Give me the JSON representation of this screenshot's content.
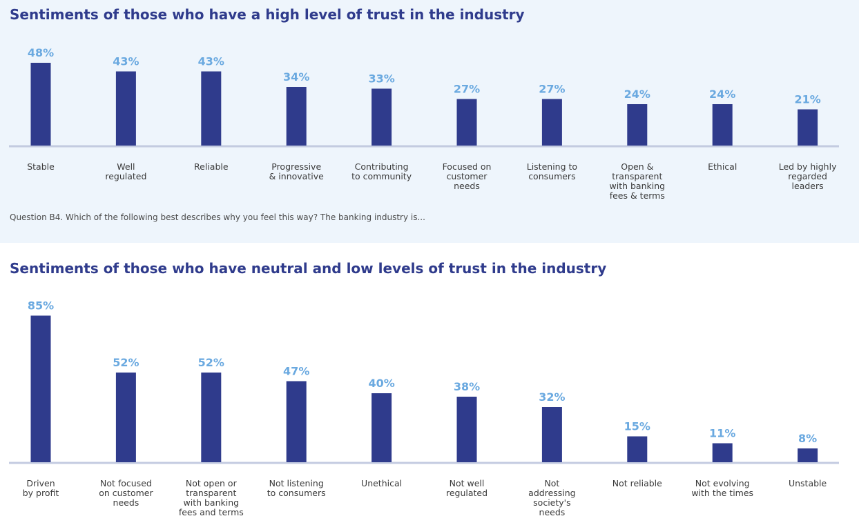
{
  "chart_data": [
    {
      "type": "bar",
      "title": "Sentiments of those who have a high level of trust in the industry",
      "categories": [
        [
          "Stable"
        ],
        [
          "Well",
          "regulated"
        ],
        [
          "Reliable"
        ],
        [
          "Progressive",
          "& innovative"
        ],
        [
          "Contributing",
          "to community"
        ],
        [
          "Focused on",
          "customer",
          "needs"
        ],
        [
          "Listening to",
          "consumers"
        ],
        [
          "Open &",
          "transparent",
          "with banking",
          "fees & terms"
        ],
        [
          "Ethical"
        ],
        [
          "Led by highly",
          "regarded",
          "leaders"
        ]
      ],
      "values": [
        48,
        43,
        43,
        34,
        33,
        27,
        27,
        24,
        24,
        21
      ],
      "value_labels": [
        "48%",
        "43%",
        "43%",
        "34%",
        "33%",
        "27%",
        "27%",
        "24%",
        "24%",
        "21%"
      ],
      "unit": "%",
      "grid": false,
      "legend": "none",
      "bar_color": "#2f3b8c",
      "label_color": "#6aa9e0",
      "footnote": "Question B4. Which of the following best describes why you feel this way? The banking industry is..."
    },
    {
      "type": "bar",
      "title": "Sentiments of those who have neutral and low levels of trust in the industry",
      "categories": [
        [
          "Driven",
          "by profit"
        ],
        [
          "Not focused",
          "on customer",
          "needs"
        ],
        [
          "Not open or",
          "transparent",
          "with banking",
          "fees and terms"
        ],
        [
          "Not listening",
          "to consumers"
        ],
        [
          "Unethical"
        ],
        [
          "Not well",
          "regulated"
        ],
        [
          "Not",
          "addressing",
          "society's",
          "needs"
        ],
        [
          "Not reliable"
        ],
        [
          "Not evolving",
          "with the times"
        ],
        [
          "Unstable"
        ]
      ],
      "values": [
        85,
        52,
        52,
        47,
        40,
        38,
        32,
        15,
        11,
        8
      ],
      "value_labels": [
        "85%",
        "52%",
        "52%",
        "47%",
        "40%",
        "38%",
        "32%",
        "15%",
        "11%",
        "8%"
      ],
      "unit": "%",
      "grid": false,
      "legend": "none",
      "bar_color": "#2f3b8c",
      "label_color": "#6aa9e0"
    }
  ]
}
